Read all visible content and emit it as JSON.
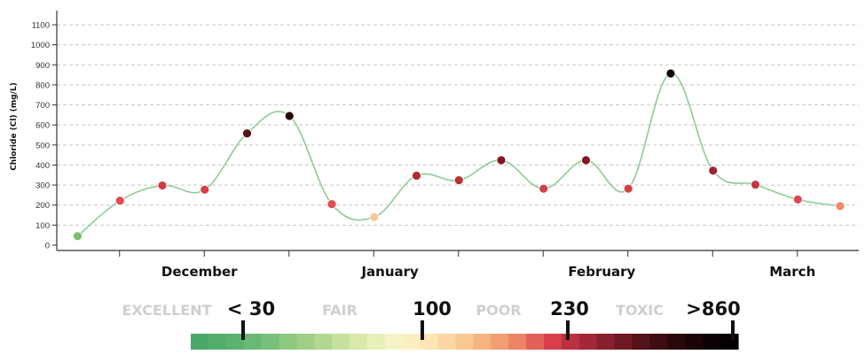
{
  "chart_data": {
    "type": "line",
    "ylabel": "Chloride (Cl) (mg/L)",
    "ylim": [
      0,
      1100
    ],
    "y_ticks": [
      "0",
      "100",
      "200",
      "300",
      "400",
      "500",
      "600",
      "700",
      "800",
      "900",
      "1000",
      "1100"
    ],
    "grid": "horizontal dashed",
    "x_labels": [
      "December",
      "January",
      "February",
      "March"
    ],
    "x_label_positions": [
      3,
      7.5,
      12.5,
      17
    ],
    "series": [
      {
        "color": "#8fcb96",
        "points": [
          {
            "x": 0,
            "y": 45,
            "color": "#7cbf6f"
          },
          {
            "x": 1,
            "y": 222,
            "color": "#e34b4e"
          },
          {
            "x": 2,
            "y": 298,
            "color": "#cf3b45"
          },
          {
            "x": 3,
            "y": 277,
            "color": "#d4404a"
          },
          {
            "x": 4,
            "y": 558,
            "color": "#5a1119"
          },
          {
            "x": 5,
            "y": 645,
            "color": "#2a0508"
          },
          {
            "x": 6,
            "y": 205,
            "color": "#e34b4e"
          },
          {
            "x": 7,
            "y": 140,
            "color": "#f7c897"
          },
          {
            "x": 8,
            "y": 347,
            "color": "#b02b35"
          },
          {
            "x": 9,
            "y": 324,
            "color": "#b7313b"
          },
          {
            "x": 10,
            "y": 424,
            "color": "#7d1a24"
          },
          {
            "x": 11,
            "y": 282,
            "color": "#d4404a"
          },
          {
            "x": 12,
            "y": 424,
            "color": "#7d1a24"
          },
          {
            "x": 13,
            "y": 282,
            "color": "#d4404a"
          },
          {
            "x": 14,
            "y": 857,
            "color": "#0a0101"
          },
          {
            "x": 15,
            "y": 372,
            "color": "#9c2330"
          },
          {
            "x": 16,
            "y": 302,
            "color": "#c63840"
          },
          {
            "x": 17,
            "y": 228,
            "color": "#e24550"
          },
          {
            "x": 18,
            "y": 195,
            "color": "#ee8a6a"
          }
        ]
      }
    ]
  },
  "legend": {
    "categories": [
      "EXCELLENT",
      "FAIR",
      "POOR",
      "TOXIC"
    ],
    "thresholds": [
      "< 30",
      "100",
      "230",
      ">860"
    ],
    "colors": [
      "#4aa86a",
      "#52ad6d",
      "#5bb271",
      "#69b975",
      "#79c07a",
      "#8cc87f",
      "#a0d087",
      "#b3d990",
      "#c6e19c",
      "#d8e9aa",
      "#e8f0ba",
      "#f4f4c7",
      "#fbefc0",
      "#fde6b3",
      "#fbd8a3",
      "#f9c792",
      "#f6b481",
      "#f29e72",
      "#ec8566",
      "#e4605a",
      "#d93e4a",
      "#bb3140",
      "#a32736",
      "#881f2d",
      "#6d1822",
      "#541218",
      "#3e0c11",
      "#2a070b",
      "#1a0406",
      "#0d0203",
      "#050101"
    ]
  }
}
